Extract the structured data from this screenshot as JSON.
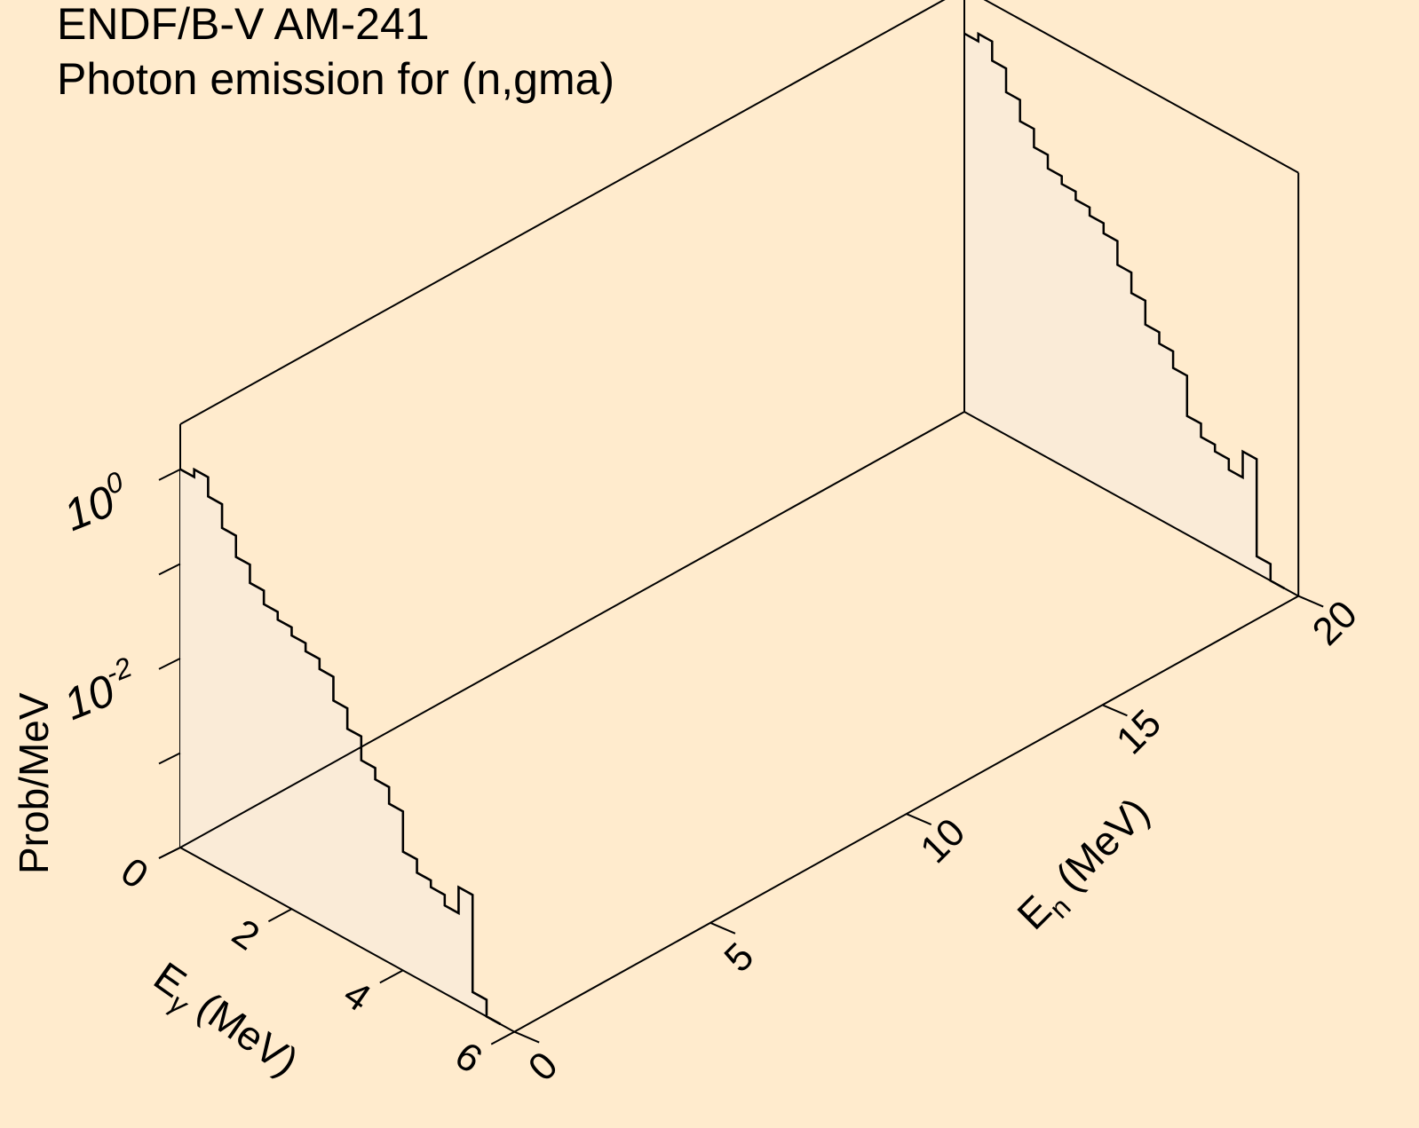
{
  "title_lines": [
    "ENDF/B-V AM-241",
    "Photon emission for (n,gma)"
  ],
  "chart_data": {
    "type": "line",
    "chart_style": "3d-waterfall-step",
    "title": "ENDF/B-V AM-241 Photon emission for (n,gma)",
    "ylabel": "Prob/MeV",
    "zlabel_main": "E",
    "zlabel_sub": "n",
    "zlabel_unit": "(MeV)",
    "xlabel_main": "E",
    "xlabel_sub": "γ",
    "xlabel_unit": "(MeV)",
    "y_scale": "log",
    "y_ticks": [
      {
        "base": "10",
        "exp": "0",
        "value": 1
      },
      {
        "base": "10",
        "exp": "-2",
        "value": 0.01
      }
    ],
    "ylim": [
      0.0001,
      3
    ],
    "x_ticks": [
      0,
      2,
      4,
      6
    ],
    "xlim": [
      0,
      6
    ],
    "z_ticks": [
      0,
      5,
      10,
      15,
      20
    ],
    "zlim": [
      0,
      20
    ],
    "egamma_bins": [
      0,
      0.25,
      0.5,
      0.75,
      1.0,
      1.25,
      1.5,
      1.75,
      2.0,
      2.25,
      2.5,
      2.75,
      3.0,
      3.25,
      3.5,
      3.75,
      4.0,
      4.25,
      4.5,
      4.75,
      5.0,
      5.25,
      5.5
    ],
    "series": [
      {
        "name": "",
        "en": 0,
        "values": [
          1.0,
          1.2,
          0.75,
          0.42,
          0.25,
          0.16,
          0.115,
          0.095,
          0.078,
          0.064,
          0.05,
          0.028,
          0.017,
          0.0095,
          0.0072,
          0.0048,
          0.0018,
          0.0013,
          0.0011,
          0.00085,
          0.0016,
          0.00015,
          0.0001
        ]
      },
      {
        "name": "",
        "en": 0.0001,
        "values": [
          1.0,
          1.2,
          0.75,
          0.42,
          0.25,
          0.16,
          0.115,
          0.095,
          0.078,
          0.064,
          0.05,
          0.028,
          0.017,
          0.0095,
          0.0072,
          0.0048,
          0.0018,
          0.0013,
          0.0011,
          0.00085,
          0.0016,
          0.00015,
          0.0001
        ]
      },
      {
        "name": "",
        "en": 20,
        "values": [
          1.0,
          1.2,
          0.75,
          0.42,
          0.25,
          0.16,
          0.115,
          0.095,
          0.078,
          0.064,
          0.05,
          0.028,
          0.017,
          0.0095,
          0.0072,
          0.0048,
          0.0018,
          0.0013,
          0.0011,
          0.00085,
          0.0016,
          0.00015,
          0.0001
        ]
      }
    ],
    "grid": false,
    "legend": "none"
  }
}
